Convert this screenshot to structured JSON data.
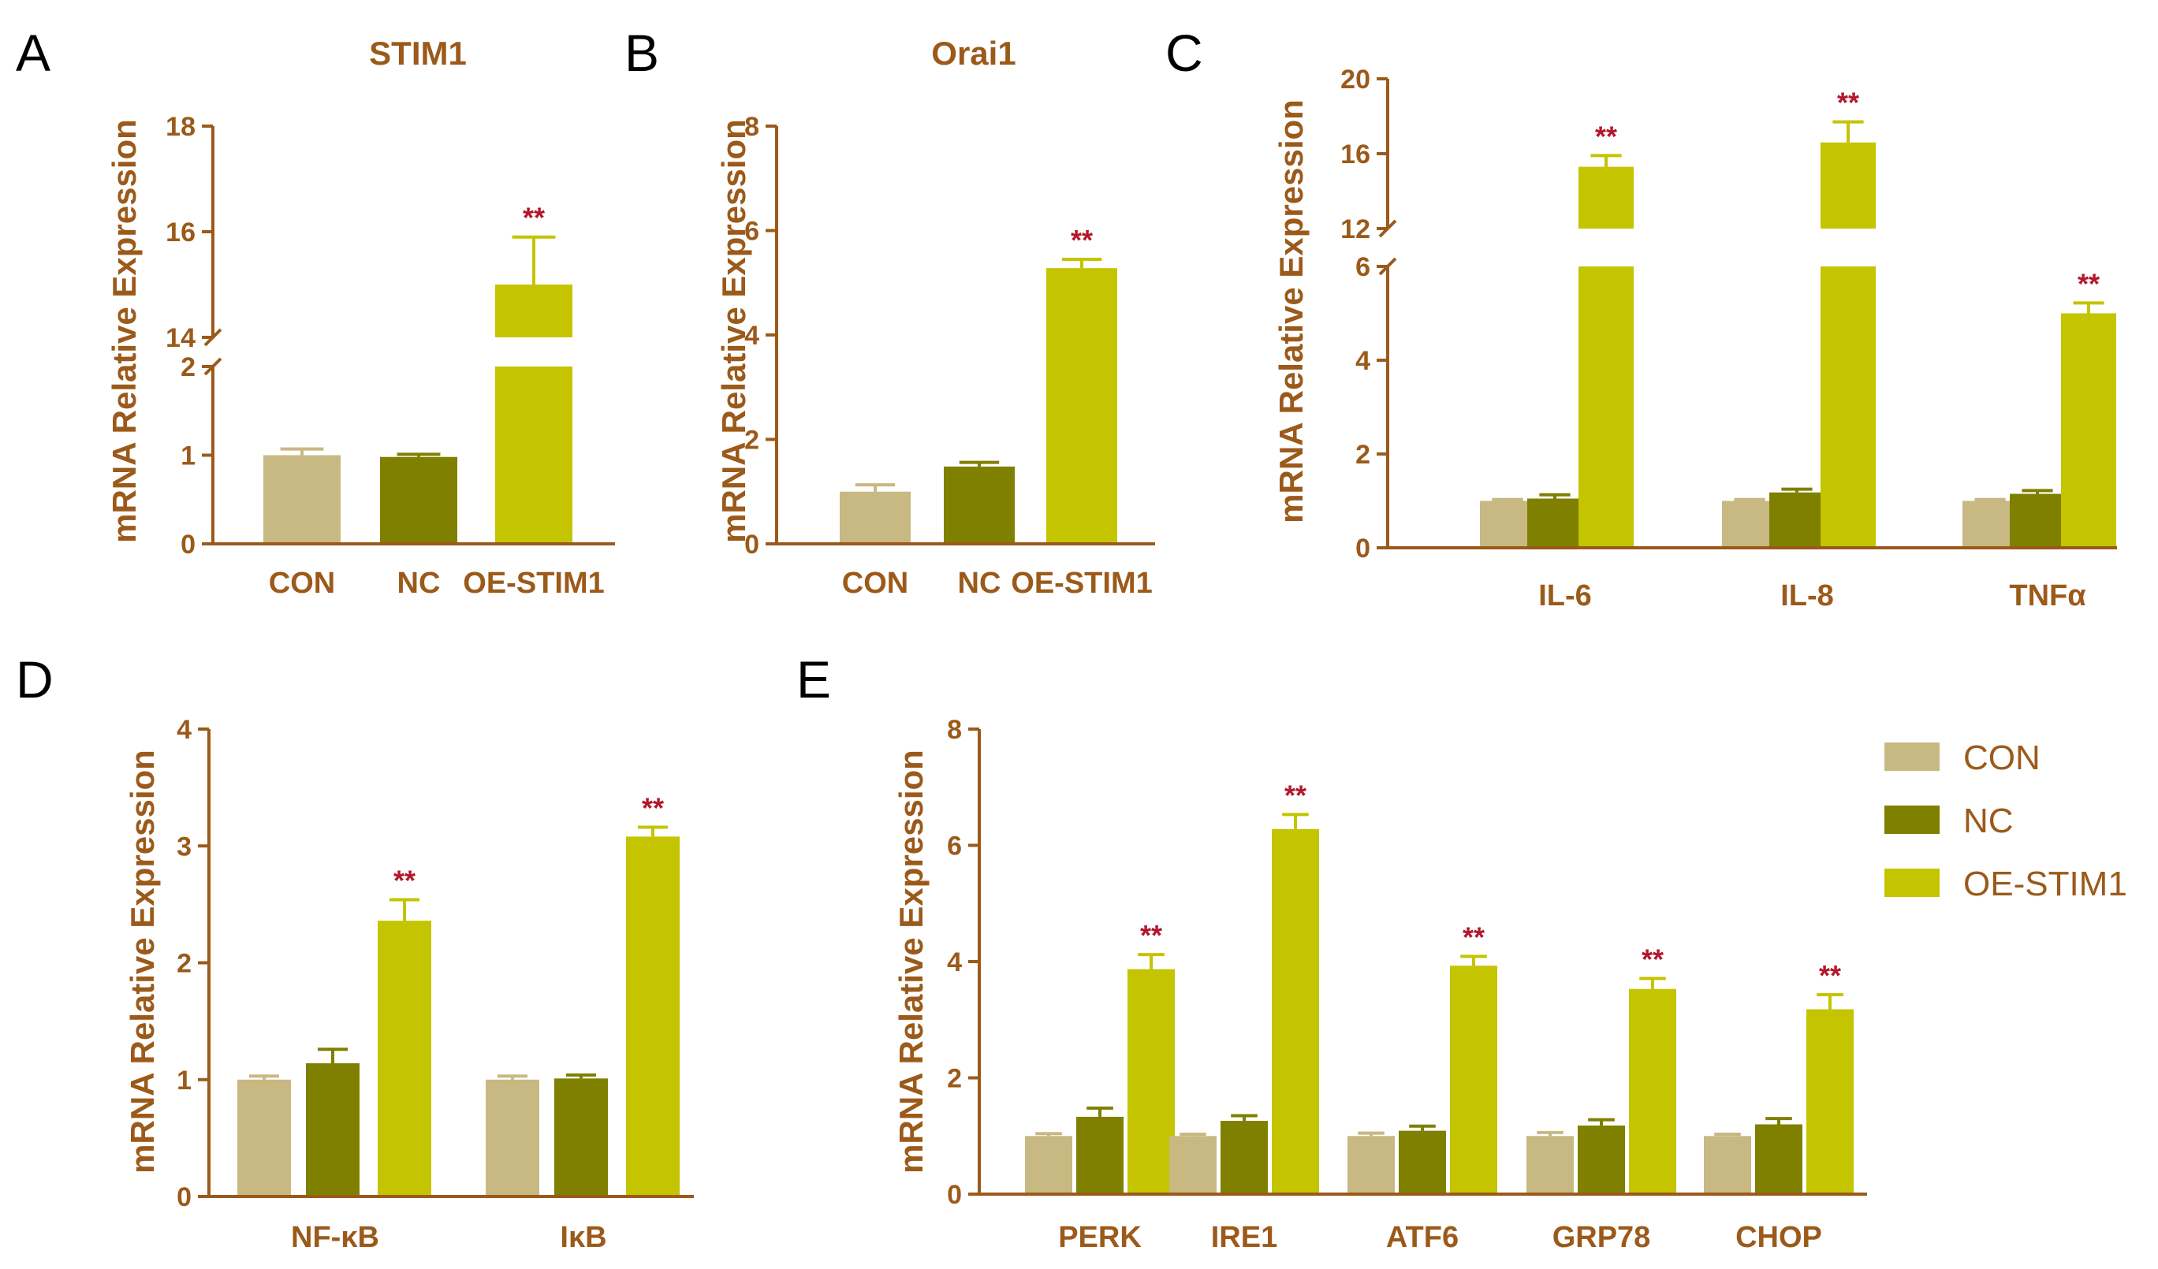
{
  "legend": {
    "entries": [
      {
        "label": "CON",
        "color": "#c8b882"
      },
      {
        "label": "NC",
        "color": "#7f7f00"
      },
      {
        "label": "OE-STIM1",
        "color": "#c4c400"
      }
    ]
  },
  "colors": {
    "axis": "#9b5a1a",
    "sig": "#b2182b"
  },
  "chart_data": [
    {
      "panel": "A",
      "type": "bar",
      "title": "STIM1",
      "ylabel": "mRNA Relative Expression",
      "categories": [
        "CON",
        "NC",
        "OE-STIM1"
      ],
      "grouped": false,
      "values": [
        1.0,
        0.98,
        15.0
      ],
      "errors": [
        0.07,
        0.03,
        0.9
      ],
      "sig": [
        "",
        "",
        "**"
      ],
      "segments": [
        {
          "range": [
            0,
            2
          ],
          "ticks": [
            0,
            1,
            2
          ]
        },
        {
          "range": [
            14,
            18
          ],
          "ticks": [
            14,
            16,
            18
          ]
        }
      ]
    },
    {
      "panel": "B",
      "type": "bar",
      "title": "Orai1",
      "ylabel": "mRNA Relative Expression",
      "categories": [
        "CON",
        "NC",
        "OE-STIM1"
      ],
      "grouped": false,
      "values": [
        1.0,
        1.48,
        5.28
      ],
      "errors": [
        0.13,
        0.08,
        0.17
      ],
      "sig": [
        "",
        "",
        "**"
      ],
      "ylim": [
        0,
        8
      ],
      "ticks": [
        0,
        2,
        4,
        6,
        8
      ]
    },
    {
      "panel": "C",
      "type": "bar",
      "title": "",
      "ylabel": "mRNA Relative Expression",
      "categories": [
        "IL-6",
        "IL-8",
        "TNFα"
      ],
      "grouped": true,
      "series": [
        {
          "name": "CON",
          "values": [
            1.0,
            1.0,
            1.0
          ],
          "errors": [
            0.03,
            0.03,
            0.03
          ]
        },
        {
          "name": "NC",
          "values": [
            1.05,
            1.18,
            1.15
          ],
          "errors": [
            0.08,
            0.07,
            0.07
          ]
        },
        {
          "name": "OE-STIM1",
          "values": [
            15.3,
            16.6,
            5.0
          ],
          "errors": [
            0.6,
            1.1,
            0.22
          ]
        }
      ],
      "sig": [
        "**",
        "**",
        "**"
      ],
      "segments": [
        {
          "range": [
            0,
            6
          ],
          "ticks": [
            0,
            2,
            4,
            6
          ]
        },
        {
          "range": [
            12,
            20
          ],
          "ticks": [
            12,
            16,
            20
          ]
        }
      ]
    },
    {
      "panel": "D",
      "type": "bar",
      "title": "",
      "ylabel": "mRNA Relative Expression",
      "categories": [
        "NF-κB",
        "IκB"
      ],
      "grouped": true,
      "series": [
        {
          "name": "CON",
          "values": [
            1.0,
            1.0
          ],
          "errors": [
            0.03,
            0.03
          ]
        },
        {
          "name": "NC",
          "values": [
            1.14,
            1.01
          ],
          "errors": [
            0.12,
            0.03
          ]
        },
        {
          "name": "OE-STIM1",
          "values": [
            2.36,
            3.08
          ],
          "errors": [
            0.18,
            0.08
          ]
        }
      ],
      "sig": [
        "**",
        "**"
      ],
      "ylim": [
        0,
        4
      ],
      "ticks": [
        0,
        1,
        2,
        3,
        4
      ]
    },
    {
      "panel": "E",
      "type": "bar",
      "title": "",
      "ylabel": "mRNA Relative Expression",
      "categories": [
        "PERK",
        "IRE1",
        "ATF6",
        "GRP78",
        "CHOP"
      ],
      "grouped": true,
      "series": [
        {
          "name": "CON",
          "values": [
            1.0,
            1.0,
            1.0,
            1.0,
            1.0
          ],
          "errors": [
            0.04,
            0.03,
            0.05,
            0.06,
            0.03
          ]
        },
        {
          "name": "NC",
          "values": [
            1.33,
            1.26,
            1.09,
            1.18,
            1.2
          ],
          "errors": [
            0.15,
            0.09,
            0.08,
            0.1,
            0.1
          ]
        },
        {
          "name": "OE-STIM1",
          "values": [
            3.87,
            6.28,
            3.93,
            3.53,
            3.18
          ],
          "errors": [
            0.25,
            0.25,
            0.16,
            0.18,
            0.25
          ]
        }
      ],
      "sig": [
        "**",
        "**",
        "**",
        "**",
        "**"
      ],
      "ylim": [
        0,
        8
      ],
      "ticks": [
        0,
        2,
        4,
        6,
        8
      ]
    }
  ]
}
